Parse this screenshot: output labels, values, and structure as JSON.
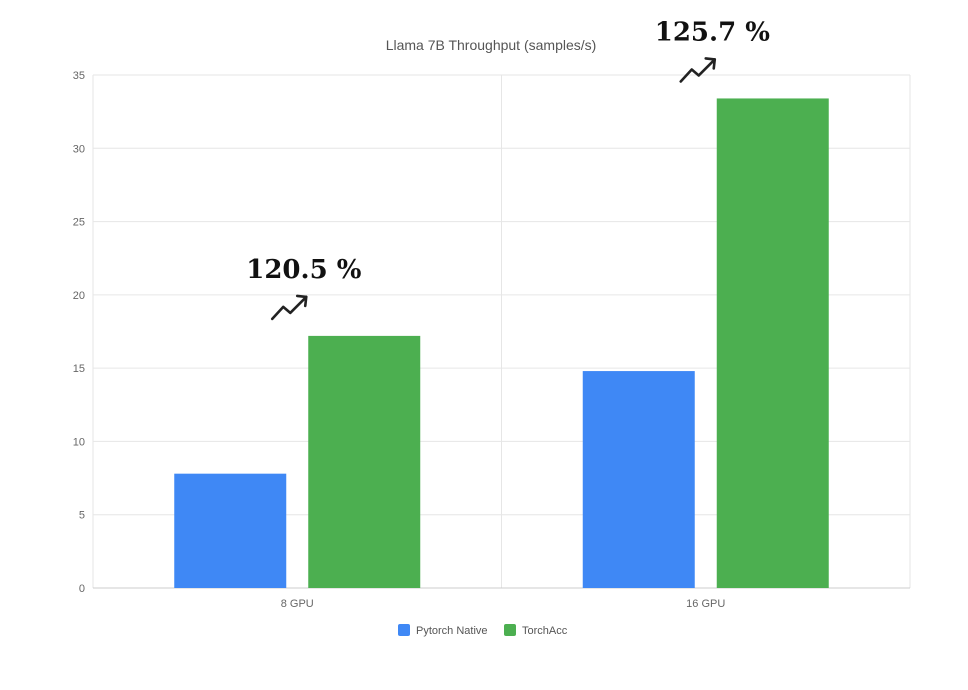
{
  "chart_data": {
    "type": "bar",
    "title": "Llama 7B Throughput (samples/s)",
    "categories": [
      "8 GPU",
      "16 GPU"
    ],
    "series": [
      {
        "name": "Pytorch Native",
        "color": "#3f88f5",
        "values": [
          7.8,
          14.8
        ]
      },
      {
        "name": "TorchAcc",
        "color": "#4caf50",
        "values": [
          17.2,
          33.4
        ]
      }
    ],
    "ylim": [
      0,
      35
    ],
    "yticks": [
      0,
      5,
      10,
      15,
      20,
      25,
      30,
      35
    ],
    "grid": true,
    "legend": "bottom-center",
    "annotations": [
      {
        "text": "120.5 %",
        "category": "8 GPU",
        "icon": "trend-up-icon"
      },
      {
        "text": "125.7 %",
        "category": "16 GPU",
        "icon": "trend-up-icon"
      }
    ]
  }
}
